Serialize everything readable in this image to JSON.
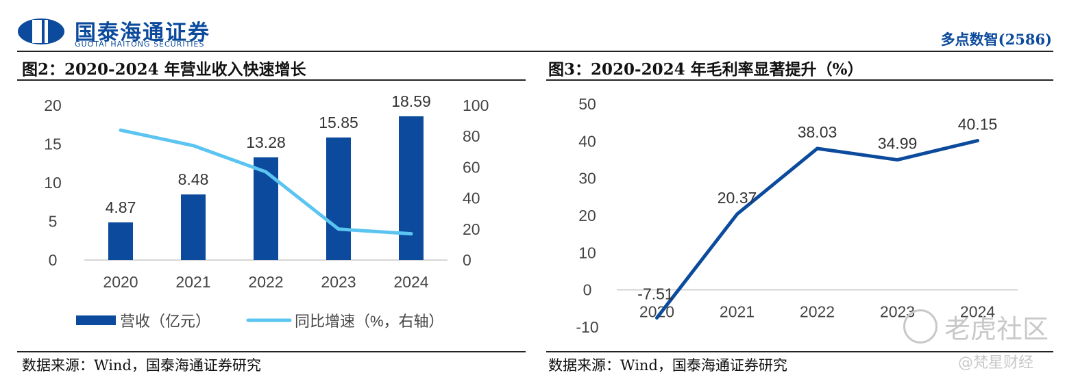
{
  "header": {
    "logo_cn": "国泰海通证券",
    "logo_en": "GUOTAI HAITONG SECURITIES",
    "brand": "多点数智(2586)"
  },
  "figures": [
    {
      "title": "图2：2020-2024 年营业收入快速增长",
      "source": "数据来源：Wind，国泰海通证券研究"
    },
    {
      "title": "图3：2020-2024 年毛利率显著提升（%）",
      "source": "数据来源：Wind，国泰海通证券研究"
    }
  ],
  "watermark": {
    "main": "老虎社区",
    "sub": "@梵星财经"
  },
  "colors": {
    "bar": "#0b4a9c",
    "line_light": "#5bc4f1",
    "line_dark": "#0b4a9c",
    "brand": "#0b4a9c"
  },
  "chart_data": [
    {
      "type": "bar",
      "categories": [
        "2020",
        "2021",
        "2022",
        "2023",
        "2024"
      ],
      "series": [
        {
          "name": "营收（亿元）",
          "type": "bar",
          "axis": "left",
          "values": [
            4.87,
            8.48,
            13.28,
            15.85,
            18.59
          ],
          "data_labels": [
            "4.87",
            "8.48",
            "13.28",
            "15.85",
            "18.59"
          ]
        },
        {
          "name": "同比增速（%，右轴）",
          "type": "line",
          "axis": "right",
          "values": [
            84,
            74,
            57,
            20,
            17
          ]
        }
      ],
      "y_left": {
        "lim": [
          0,
          20
        ],
        "ticks": [
          "0",
          "5",
          "10",
          "15",
          "20"
        ]
      },
      "y_right": {
        "lim": [
          0,
          100
        ],
        "ticks": [
          "0",
          "20",
          "40",
          "60",
          "80",
          "100"
        ]
      },
      "grid": false,
      "legend": "bottom"
    },
    {
      "type": "line",
      "categories": [
        "2020",
        "2021",
        "2022",
        "2023",
        "2024"
      ],
      "series": [
        {
          "values": [
            -7.51,
            20.37,
            38.03,
            34.99,
            40.15
          ],
          "data_labels": [
            "-7.51",
            "20.37",
            "38.03",
            "34.99",
            "40.15"
          ]
        }
      ],
      "ylim": [
        -10,
        50
      ],
      "y_ticks": [
        "-10",
        "0",
        "10",
        "20",
        "30",
        "40",
        "50"
      ],
      "grid": false,
      "legend": "none"
    }
  ]
}
